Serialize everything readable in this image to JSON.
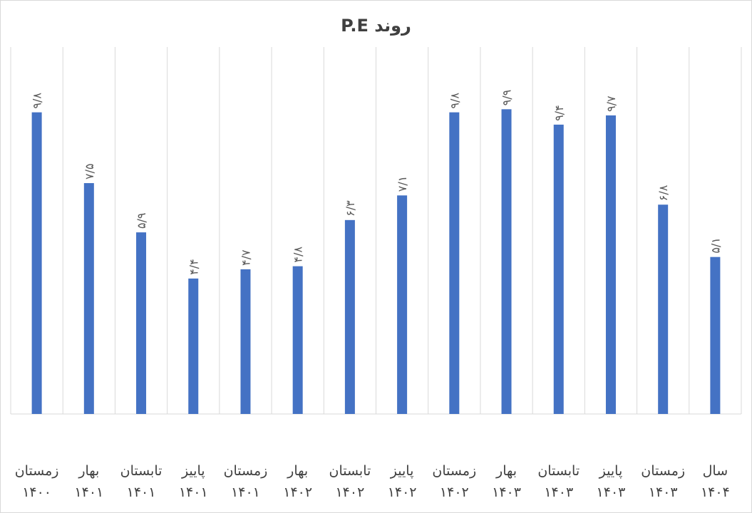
{
  "chart_data": {
    "type": "bar",
    "title": "روند P.E",
    "xlabel": "",
    "ylabel": "",
    "ylim": [
      0,
      12
    ],
    "grid": "vertical",
    "bar_color": "#4472c4",
    "categories": [
      [
        "زمستان",
        "۱۴۰۰"
      ],
      [
        "بهار",
        "۱۴۰۱"
      ],
      [
        "تابستان",
        "۱۴۰۱"
      ],
      [
        "پاییز",
        "۱۴۰۱"
      ],
      [
        "زمستان",
        "۱۴۰۱"
      ],
      [
        "بهار",
        "۱۴۰۲"
      ],
      [
        "تابستان",
        "۱۴۰۲"
      ],
      [
        "پاییز",
        "۱۴۰۲"
      ],
      [
        "زمستان",
        "۱۴۰۲"
      ],
      [
        "بهار",
        "۱۴۰۳"
      ],
      [
        "تابستان",
        "۱۴۰۳"
      ],
      [
        "پاییز",
        "۱۴۰۳"
      ],
      [
        "زمستان",
        "۱۴۰۳"
      ],
      [
        "سال",
        "۱۴۰۴"
      ]
    ],
    "values": [
      9.8,
      7.5,
      5.9,
      4.4,
      4.7,
      4.8,
      6.3,
      7.1,
      9.8,
      9.9,
      9.4,
      9.7,
      6.8,
      5.1
    ],
    "data_labels": [
      "۹/۸",
      "۷/۵",
      "۵/۹",
      "۴/۴",
      "۴/۷",
      "۴/۸",
      "۶/۳",
      "۷/۱",
      "۹/۸",
      "۹/۹",
      "۹/۴",
      "۹/۷",
      "۶/۸",
      "۵/۱"
    ]
  }
}
